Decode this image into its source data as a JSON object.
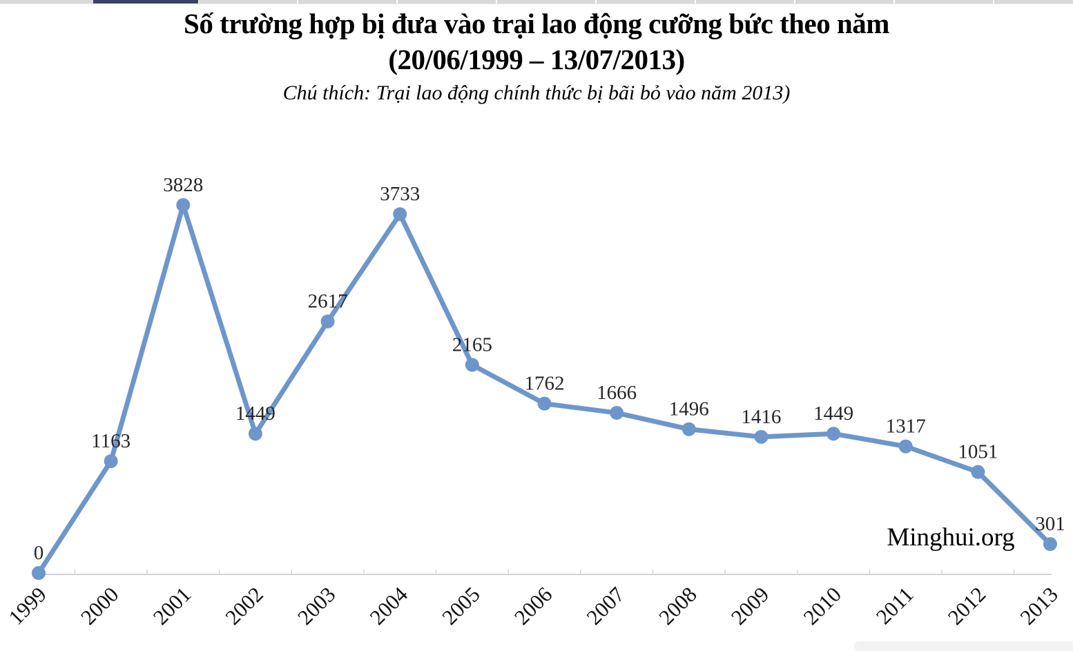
{
  "header": {
    "title_line1": "Số trường hợp bị đưa vào trại lao động cưỡng bức theo năm",
    "title_line2": "(20/06/1999 – 13/07/2013)",
    "subtitle": "Chú thích: Trại lao động chính thức bị bãi bỏ vào năm 2013)"
  },
  "watermark": "Minghui.org",
  "decor": {
    "top_strip_color": "#d9d9d9",
    "top_strip_selection_color": "#3a4166"
  },
  "chart_data": {
    "type": "line",
    "title": "Số trường hợp bị đưa vào trại lao động cưỡng bức theo năm (20/06/1999 – 13/07/2013)",
    "subtitle": "Chú thích: Trại lao động chính thức bị bãi bỏ vào năm 2013)",
    "categories": [
      "1999",
      "2000",
      "2001",
      "2002",
      "2003",
      "2004",
      "2005",
      "2006",
      "2007",
      "2008",
      "2009",
      "2010",
      "2011",
      "2012",
      "2013"
    ],
    "series": [
      {
        "name": "Số trường hợp",
        "values": [
          0,
          1163,
          3828,
          1449,
          2617,
          3733,
          2165,
          1762,
          1666,
          1496,
          1416,
          1449,
          1317,
          1051,
          301
        ]
      }
    ],
    "data_labels": true,
    "xlabel": "",
    "ylabel": "",
    "ylim": [
      0,
      4000
    ],
    "grid": false,
    "legend": false,
    "y_axis_visible": false,
    "x_tick_rotation": -45,
    "colors": {
      "line": "#6d96cb",
      "marker": "#6d96cb",
      "axis": "#d3d3d3",
      "data_label": "#262626",
      "tick_label": "#111111"
    }
  }
}
